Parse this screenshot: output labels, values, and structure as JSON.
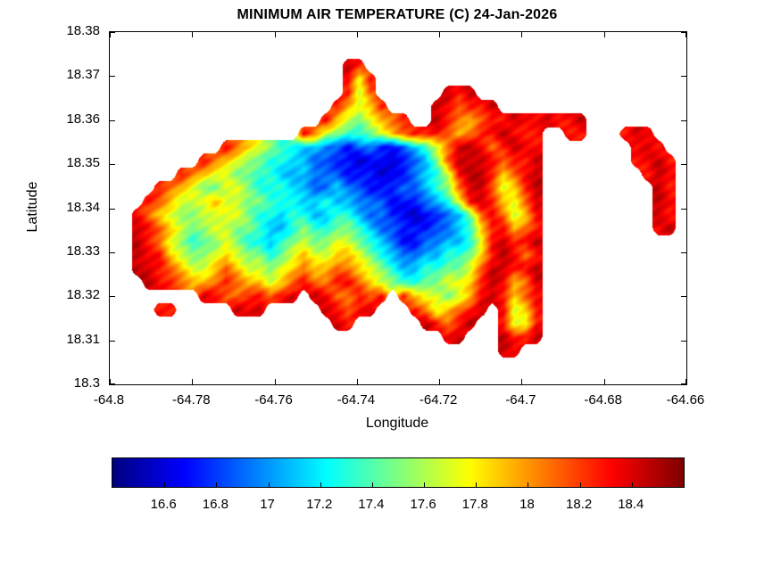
{
  "chart_data": {
    "type": "heatmap",
    "title": "MINIMUM AIR TEMPERATURE (C) 24-Jan-2026",
    "xlabel": "Longitude",
    "ylabel": "Latitude",
    "xlim": [
      -64.8,
      -64.66
    ],
    "ylim": [
      18.3,
      18.38
    ],
    "xticks": [
      -64.8,
      -64.78,
      -64.76,
      -64.74,
      -64.72,
      -64.7,
      -64.68,
      -64.66
    ],
    "xtick_labels": [
      "-64.8",
      "-64.78",
      "-64.76",
      "-64.74",
      "-64.72",
      "-64.7",
      "-64.68",
      "-64.66"
    ],
    "yticks": [
      18.3,
      18.31,
      18.32,
      18.33,
      18.34,
      18.35,
      18.36,
      18.37,
      18.38
    ],
    "ytick_labels": [
      "18.3",
      "18.31",
      "18.32",
      "18.33",
      "18.34",
      "18.35",
      "18.36",
      "18.37",
      "18.38"
    ],
    "grid_lines": false,
    "colormap": "jet",
    "clim": [
      16.4,
      18.6
    ],
    "colorbar": {
      "orientation": "horizontal",
      "position": "bottom",
      "ticks": [
        16.6,
        16.8,
        17,
        17.2,
        17.4,
        17.6,
        17.8,
        18,
        18.2,
        18.4
      ],
      "tick_labels": [
        "16.6",
        "16.8",
        "17",
        "17.2",
        "17.4",
        "17.6",
        "17.8",
        "18",
        "18.2",
        "18.4"
      ]
    },
    "grid": {
      "note": "Estimated temperature field (deg C) sampled from the map; '.' = water / no data. Rows run north (18.38) to south (18.3), columns west (-64.8) to east (-64.66).",
      "ncols": 52,
      "nrows": 26,
      "sea_char": ".",
      "value_key": {
        "A": 16.55,
        "B": 16.7,
        "C": 16.9,
        "D": 17.1,
        "E": 17.3,
        "F": 17.5,
        "G": 17.7,
        "H": 17.9,
        "I": 18.1,
        "J": 18.3,
        "K": 18.45
      },
      "rows": [
        "....................................................",
        "....................................................",
        ".....................KJ.............................",
        ".....................JGJ............................",
        ".....................JGI......KJK...................",
        "....................JHGHJ....KJIJJK.................",
        "...................JHGFGHIJ..KJIHIJJKJJKJJK.........",
        ".................JIGFEEFGHIJJJIHIJJKJJJ..JJ...JKJ...",
        "..........JIHGFEEDDCCBCCBBCDEGIKKJIJKJJ........JKJ..",
        "........JIHGFFEEDDCCBBABBABCDFIKKKJIJJK........JJKJ.",
        "......JIHGGFFEEDDDCCCBBBABBCDEGJKKJHIJK.........JKJ.",
        "....JIHGFFGGFEEEDDCCDCCBBBCCDEFIKKIGHJK..........KJ.",
        "...JIHGGGHGGFFEEEDDEDDCCCBBBCDEGJKJHGIK..........KJ.",
        "..JIHGFFGGGGFEEDEEDDEEDCCBBABBCDFIJIGHJ..........KJ.",
        "..KJIHGFFGGFFEDDEFEEFFEDCCBBBCCDEHJJHIJ..........JK.",
        "..KJIGFEFFGFEEDEFGFFGGFEDCBBCCDDEGJKJJK.............",
        "..KJJHGFFGHGFFEFGHGGHHGFEDCCDDEEFHJKJIJ.............",
        "..KKJIHGGHIHGGFGHIHHIIHGFEDDEEFFGIKKJJK.............",
        "...KJJIHHIJIHHGHIJIIJJIHGFEEFFGGHJKJHIK.............",
        "........KJIIJJIJK.KJIIJIJ.JHGGFGHJKJHIJ.............",
        "....JJ.....KJK.....KJIJK...JIGHIJK.JGHJ.............",
        "....................KJ......KJIJK..JGGJ.............",
        "..............................JK...KJJK.............",
        "...................................KJ...............",
        "....................................................",
        "...................................................."
      ]
    }
  }
}
